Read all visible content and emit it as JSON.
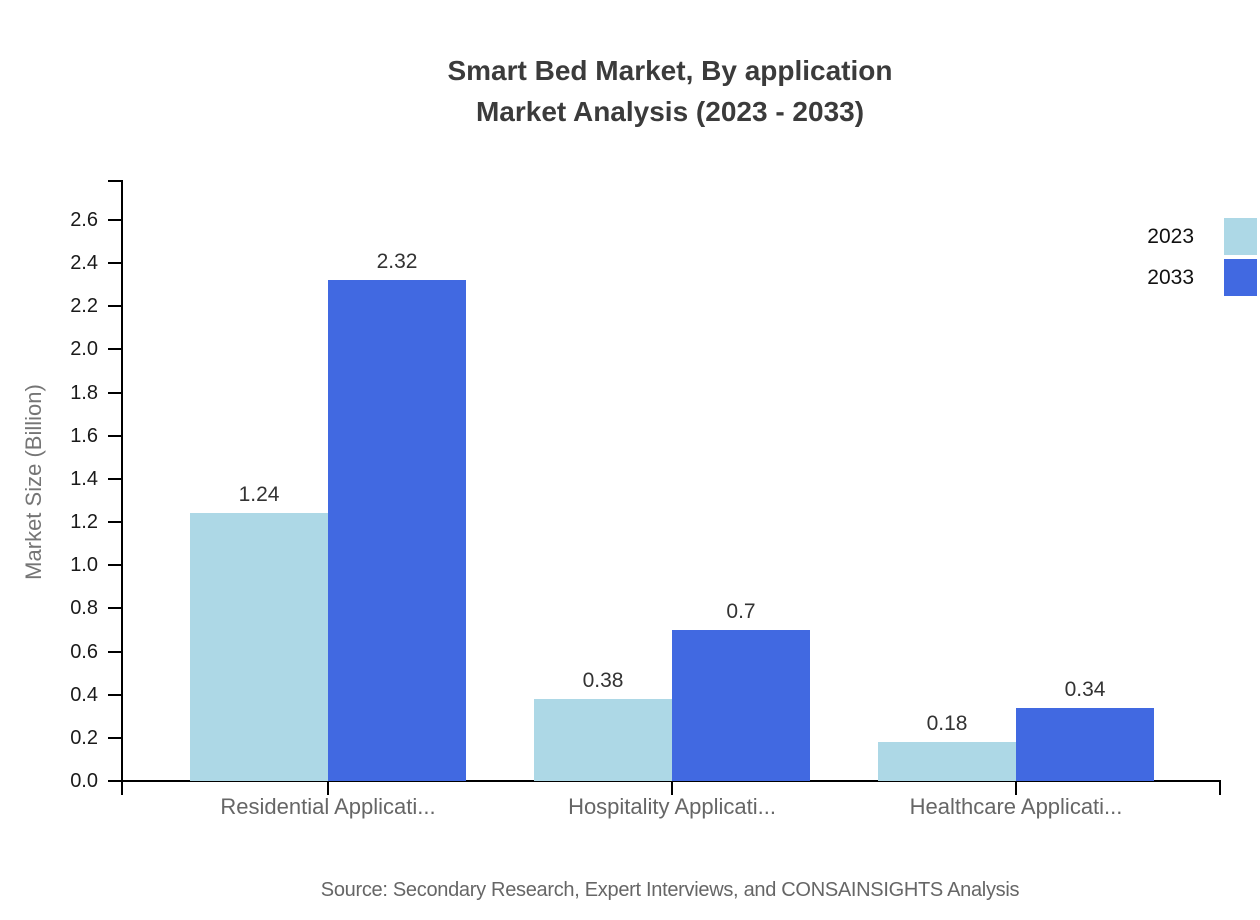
{
  "title": {
    "line1": "Smart Bed Market, By application",
    "line2": "Market Analysis (2023 - 2033)"
  },
  "source": "Source: Secondary Research, Expert Interviews, and CONSAINSIGHTS Analysis",
  "chart_data": {
    "type": "bar",
    "categories": [
      "Residential Applicati...",
      "Hospitality Applicati...",
      "Healthcare Applicati..."
    ],
    "series": [
      {
        "name": "2023",
        "color": "#ADD8E6",
        "values": [
          1.24,
          0.38,
          0.18
        ],
        "value_labels": [
          "1.24",
          "0.38",
          "0.18"
        ]
      },
      {
        "name": "2033",
        "color": "#4169E1",
        "values": [
          2.32,
          0.7,
          0.34
        ],
        "value_labels": [
          "2.32",
          "0.7",
          "0.34"
        ]
      }
    ],
    "ylabel": "Market Size (Billion)",
    "ylim": [
      0.0,
      2.7
    ],
    "ytick_labels": [
      "0.0",
      "0.2",
      "0.4",
      "0.6",
      "0.8",
      "1.0",
      "1.2",
      "1.4",
      "1.6",
      "1.8",
      "2.0",
      "2.2",
      "2.4",
      "2.6"
    ],
    "grid": false,
    "legend_position": "top-right",
    "bar_value_labels_shown": true
  }
}
